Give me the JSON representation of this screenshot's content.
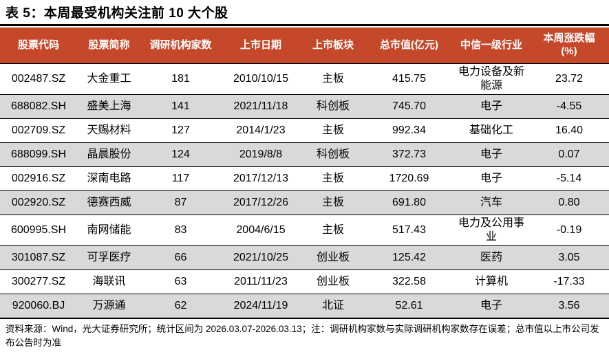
{
  "title": "表 5：本周最受机构关注前 10 大个股",
  "colors": {
    "header_bg": "#C5482A",
    "header_text": "#FFFFFF",
    "alt_row_bg": "#D9D9D9",
    "rule": "#000000"
  },
  "table": {
    "columns": [
      {
        "id": "code",
        "label": "股票代码"
      },
      {
        "id": "name",
        "label": "股票简称"
      },
      {
        "id": "inst_count",
        "label": "调研机构家数"
      },
      {
        "id": "list_date",
        "label": "上市日期"
      },
      {
        "id": "board",
        "label": "上市板块"
      },
      {
        "id": "mktcap",
        "label": "总市值(亿元)"
      },
      {
        "id": "industry",
        "label": "中信一级行业"
      },
      {
        "id": "week_chg",
        "label": "本周涨跌幅(%)"
      }
    ],
    "rows": [
      [
        "002487.SZ",
        "大金重工",
        "181",
        "2010/10/15",
        "主板",
        "415.75",
        "电力设备及新能源",
        "23.72"
      ],
      [
        "688082.SH",
        "盛美上海",
        "141",
        "2021/11/18",
        "科创板",
        "745.70",
        "电子",
        "-4.55"
      ],
      [
        "002709.SZ",
        "天赐材料",
        "127",
        "2014/1/23",
        "主板",
        "992.34",
        "基础化工",
        "16.40"
      ],
      [
        "688099.SH",
        "晶晨股份",
        "124",
        "2019/8/8",
        "科创板",
        "372.73",
        "电子",
        "0.07"
      ],
      [
        "002916.SZ",
        "深南电路",
        "117",
        "2017/12/13",
        "主板",
        "1720.69",
        "电子",
        "-5.14"
      ],
      [
        "002920.SZ",
        "德赛西威",
        "87",
        "2017/12/26",
        "主板",
        "691.80",
        "汽车",
        "0.80"
      ],
      [
        "600995.SH",
        "南网储能",
        "83",
        "2004/6/15",
        "主板",
        "517.43",
        "电力及公用事业",
        "-0.19"
      ],
      [
        "301087.SZ",
        "可孚医疗",
        "66",
        "2021/10/25",
        "创业板",
        "125.42",
        "医药",
        "3.05"
      ],
      [
        "300277.SZ",
        "海联讯",
        "63",
        "2011/11/23",
        "创业板",
        "322.58",
        "计算机",
        "-17.33"
      ],
      [
        "920060.BJ",
        "万源通",
        "62",
        "2024/11/19",
        "北证",
        "52.61",
        "电子",
        "3.56"
      ]
    ]
  },
  "footer": {
    "text": "资料来源：Wind，光大证券研究所；统计区间为 2026.03.07-2026.03.13；注：调研机构家数与实际调研机构家数存在误差；总市值以上市公司发布公告时为准"
  }
}
